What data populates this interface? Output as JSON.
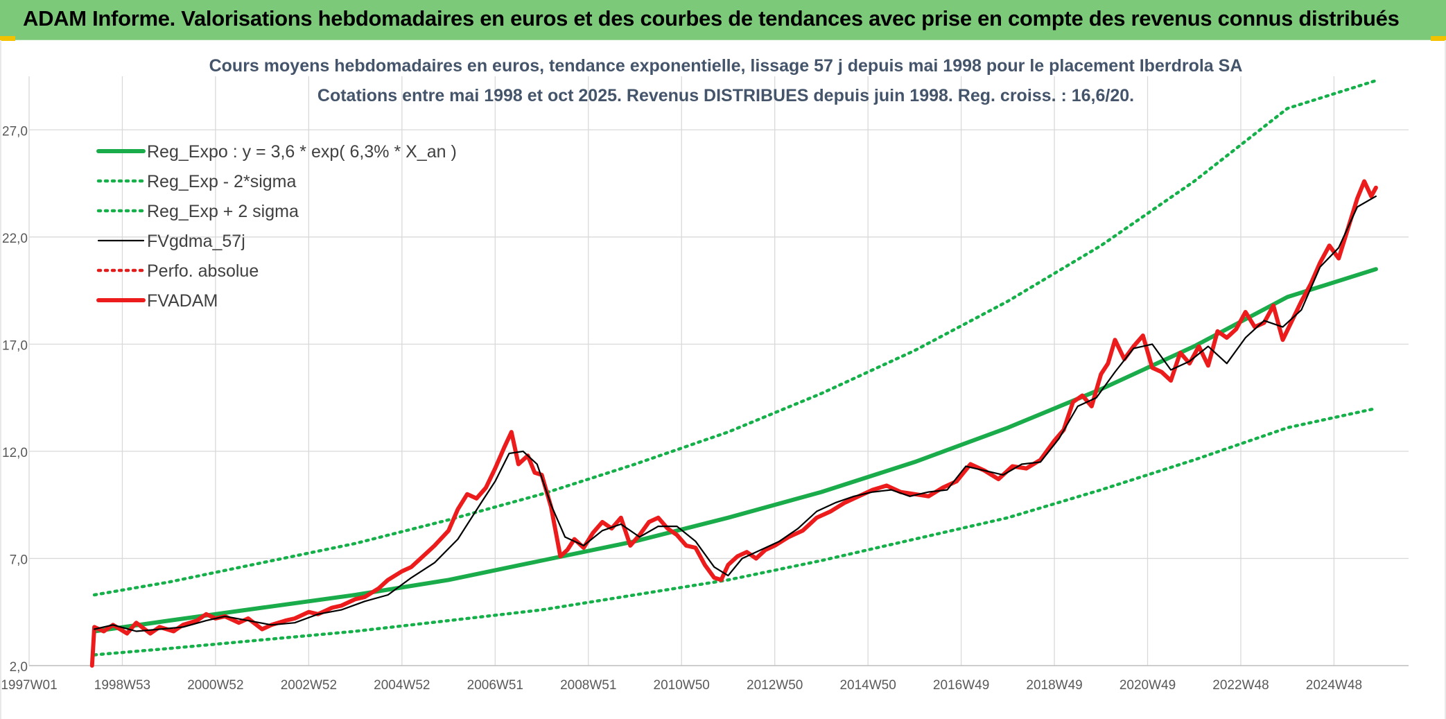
{
  "banner": {
    "title": "ADAM Informe. Valorisations hebdomadaires en euros et des courbes de tendances avec prise en compte des revenus connus distribués"
  },
  "colors": {
    "banner": "#7dc97a",
    "reg_green": "#1aac4b",
    "sigma_green": "#16b04a",
    "fvgdma": "#000000",
    "fvadam": "#ec1c1c",
    "perfo": "#e31b1b",
    "grid": "#d9d9d9",
    "title_text": "#44546a"
  },
  "chart_data": {
    "type": "line",
    "title": "Cours moyens hebdomadaires en euros, tendance exponentielle, lissage 57 j depuis mai 1998 pour le placement Iberdrola SA",
    "subtitle": "Cotations entre mai 1998 et oct 2025. Revenus DISTRIBUES depuis juin 1998. Reg. croiss. : 16,6/20.",
    "xlabel": "",
    "ylabel": "",
    "xlim": [
      1997.0,
      2026.6
    ],
    "ylim": [
      2.0,
      29.5
    ],
    "y_ticks": [
      {
        "value": 2.0,
        "label": "2,0"
      },
      {
        "value": 7.0,
        "label": "7,0"
      },
      {
        "value": 12.0,
        "label": "12,0"
      },
      {
        "value": 17.0,
        "label": "17,0"
      },
      {
        "value": 22.0,
        "label": "22,0"
      },
      {
        "value": 27.0,
        "label": "27,0"
      }
    ],
    "x_ticks": [
      {
        "value": 1997.0,
        "label": "1997W01"
      },
      {
        "value": 1999.0,
        "label": "1998W53"
      },
      {
        "value": 2001.0,
        "label": "2000W52"
      },
      {
        "value": 2003.0,
        "label": "2002W52"
      },
      {
        "value": 2005.0,
        "label": "2004W52"
      },
      {
        "value": 2007.0,
        "label": "2006W51"
      },
      {
        "value": 2009.0,
        "label": "2008W51"
      },
      {
        "value": 2011.0,
        "label": "2010W50"
      },
      {
        "value": 2013.0,
        "label": "2012W50"
      },
      {
        "value": 2015.0,
        "label": "2014W50"
      },
      {
        "value": 2017.0,
        "label": "2016W49"
      },
      {
        "value": 2019.0,
        "label": "2018W49"
      },
      {
        "value": 2021.0,
        "label": "2020W49"
      },
      {
        "value": 2023.0,
        "label": "2022W48"
      },
      {
        "value": 2025.0,
        "label": "2024W48"
      }
    ],
    "grid": true,
    "legend_position": "top-left",
    "series": [
      {
        "name": "Reg_Expo : y = 3,6 * exp( 6,3% *  X_an )",
        "style": "solid-thick",
        "color": "#1aac4b",
        "x": [
          1998.4,
          2000.0,
          2002.0,
          2004.0,
          2006.0,
          2008.0,
          2010.0,
          2012.0,
          2014.0,
          2016.0,
          2018.0,
          2020.0,
          2022.0,
          2024.0,
          2025.9
        ],
        "y": [
          3.6,
          4.1,
          4.7,
          5.3,
          6.0,
          6.9,
          7.8,
          8.9,
          10.1,
          11.5,
          13.1,
          14.9,
          16.9,
          19.2,
          20.5
        ]
      },
      {
        "name": "Reg_Exp - 2*sigma",
        "style": "dotted",
        "color": "#16b04a",
        "x": [
          1998.4,
          2000.0,
          2002.0,
          2004.0,
          2006.0,
          2008.0,
          2010.0,
          2012.0,
          2014.0,
          2016.0,
          2018.0,
          2020.0,
          2022.0,
          2024.0,
          2025.9
        ],
        "y": [
          2.5,
          2.8,
          3.2,
          3.6,
          4.1,
          4.6,
          5.3,
          6.0,
          6.9,
          7.9,
          8.9,
          10.2,
          11.6,
          13.1,
          14.0
        ]
      },
      {
        "name": "Reg_Exp + 2 sigma",
        "style": "dotted",
        "color": "#16b04a",
        "x": [
          1998.4,
          2000.0,
          2002.0,
          2004.0,
          2006.0,
          2008.0,
          2010.0,
          2012.0,
          2014.0,
          2016.0,
          2018.0,
          2020.0,
          2022.0,
          2024.0,
          2025.9
        ],
        "y": [
          5.3,
          5.9,
          6.8,
          7.7,
          8.8,
          10.0,
          11.4,
          12.9,
          14.7,
          16.7,
          19.0,
          21.6,
          24.6,
          28.0,
          29.3
        ]
      },
      {
        "name": "FVgdma_57j",
        "style": "solid-thin",
        "color": "#000000",
        "x": [
          1998.4,
          1998.8,
          1999.3,
          1999.8,
          2000.3,
          2000.8,
          2001.2,
          2001.7,
          2002.2,
          2002.7,
          2003.2,
          2003.7,
          2004.2,
          2004.7,
          2005.2,
          2005.7,
          2006.2,
          2006.7,
          2007.0,
          2007.3,
          2007.6,
          2007.9,
          2008.2,
          2008.5,
          2008.9,
          2009.3,
          2009.7,
          2010.1,
          2010.5,
          2010.9,
          2011.3,
          2011.7,
          2012.0,
          2012.3,
          2012.7,
          2013.1,
          2013.5,
          2013.9,
          2014.3,
          2014.7,
          2015.1,
          2015.5,
          2015.9,
          2016.3,
          2016.7,
          2017.1,
          2017.5,
          2017.9,
          2018.3,
          2018.7,
          2019.1,
          2019.5,
          2019.9,
          2020.3,
          2020.7,
          2021.1,
          2021.5,
          2021.9,
          2022.3,
          2022.7,
          2023.1,
          2023.5,
          2023.9,
          2024.3,
          2024.7,
          2025.1,
          2025.5,
          2025.9
        ],
        "y": [
          3.7,
          3.9,
          3.6,
          3.7,
          3.8,
          4.1,
          4.3,
          4.1,
          3.9,
          4.0,
          4.4,
          4.6,
          5.0,
          5.3,
          6.1,
          6.8,
          7.9,
          9.6,
          10.6,
          11.9,
          12.0,
          11.4,
          9.5,
          8.0,
          7.6,
          8.3,
          8.6,
          8.0,
          8.5,
          8.5,
          7.8,
          6.6,
          6.2,
          7.0,
          7.4,
          7.8,
          8.4,
          9.2,
          9.6,
          9.9,
          10.1,
          10.2,
          9.9,
          10.1,
          10.2,
          11.3,
          11.1,
          10.9,
          11.4,
          11.5,
          12.6,
          14.1,
          14.5,
          15.7,
          16.8,
          17.0,
          15.8,
          16.2,
          16.9,
          16.1,
          17.3,
          18.1,
          17.8,
          18.6,
          20.6,
          21.5,
          23.4,
          23.9
        ]
      },
      {
        "name": "Perfo. absolue",
        "style": "dotted",
        "color": "#e31b1b",
        "x": [],
        "y": []
      },
      {
        "name": "FVADAM",
        "style": "solid-thick",
        "color": "#ec1c1c",
        "x": [
          1998.35,
          1998.4,
          1998.6,
          1998.8,
          1999.1,
          1999.3,
          1999.6,
          1999.8,
          2000.1,
          2000.3,
          2000.6,
          2000.8,
          2001.0,
          2001.2,
          2001.5,
          2001.7,
          2002.0,
          2002.2,
          2002.5,
          2002.7,
          2003.0,
          2003.2,
          2003.5,
          2003.7,
          2004.0,
          2004.2,
          2004.5,
          2004.7,
          2005.0,
          2005.2,
          2005.5,
          2005.7,
          2006.0,
          2006.2,
          2006.4,
          2006.6,
          2006.8,
          2007.0,
          2007.2,
          2007.35,
          2007.5,
          2007.7,
          2007.85,
          2008.0,
          2008.2,
          2008.4,
          2008.55,
          2008.7,
          2008.9,
          2009.1,
          2009.3,
          2009.5,
          2009.7,
          2009.9,
          2010.1,
          2010.3,
          2010.5,
          2010.7,
          2010.9,
          2011.1,
          2011.3,
          2011.5,
          2011.7,
          2011.85,
          2012.0,
          2012.2,
          2012.4,
          2012.6,
          2012.8,
          2013.0,
          2013.3,
          2013.6,
          2013.9,
          2014.2,
          2014.5,
          2014.8,
          2015.1,
          2015.4,
          2015.7,
          2016.0,
          2016.3,
          2016.6,
          2016.9,
          2017.2,
          2017.5,
          2017.8,
          2018.1,
          2018.4,
          2018.7,
          2019.0,
          2019.2,
          2019.4,
          2019.6,
          2019.8,
          2020.0,
          2020.15,
          2020.3,
          2020.5,
          2020.7,
          2020.9,
          2021.1,
          2021.3,
          2021.5,
          2021.7,
          2021.9,
          2022.1,
          2022.3,
          2022.5,
          2022.7,
          2022.9,
          2023.1,
          2023.3,
          2023.5,
          2023.7,
          2023.9,
          2024.1,
          2024.3,
          2024.5,
          2024.7,
          2024.9,
          2025.1,
          2025.3,
          2025.5,
          2025.65,
          2025.8,
          2025.9
        ],
        "y": [
          2.0,
          3.8,
          3.6,
          3.9,
          3.5,
          4.0,
          3.5,
          3.8,
          3.6,
          3.9,
          4.1,
          4.4,
          4.2,
          4.3,
          4.0,
          4.2,
          3.7,
          3.9,
          4.1,
          4.2,
          4.5,
          4.4,
          4.7,
          4.8,
          5.1,
          5.2,
          5.6,
          6.0,
          6.4,
          6.6,
          7.2,
          7.6,
          8.3,
          9.3,
          10.0,
          9.8,
          10.3,
          11.2,
          12.2,
          12.9,
          11.4,
          11.8,
          11.0,
          10.9,
          9.4,
          7.1,
          7.4,
          7.9,
          7.5,
          8.2,
          8.7,
          8.4,
          8.9,
          7.6,
          8.1,
          8.7,
          8.9,
          8.4,
          8.1,
          7.6,
          7.5,
          6.7,
          6.1,
          6.0,
          6.7,
          7.1,
          7.3,
          7.0,
          7.4,
          7.6,
          8.0,
          8.3,
          8.9,
          9.2,
          9.6,
          9.9,
          10.2,
          10.4,
          10.1,
          10.0,
          9.9,
          10.3,
          10.6,
          11.4,
          11.1,
          10.7,
          11.3,
          11.2,
          11.6,
          12.5,
          13.0,
          14.3,
          14.6,
          14.1,
          15.6,
          16.1,
          17.2,
          16.3,
          16.9,
          17.4,
          15.9,
          15.7,
          15.3,
          16.6,
          16.1,
          16.9,
          16.0,
          17.6,
          17.3,
          17.7,
          18.5,
          17.8,
          18.0,
          18.8,
          17.2,
          18.1,
          19.0,
          19.8,
          20.8,
          21.6,
          21.0,
          22.4,
          23.8,
          24.6,
          23.9,
          24.3
        ]
      }
    ]
  }
}
